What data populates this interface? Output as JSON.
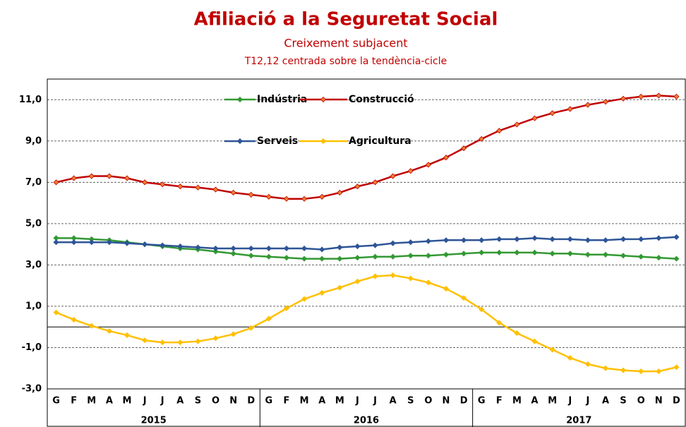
{
  "chart_data": {
    "type": "line",
    "title": "Afiliació a la Seguretat Social",
    "subtitle": "Creixement subjacent",
    "note": "T12,12 centrada sobre la tendència-cicle",
    "categories": [
      "G",
      "F",
      "M",
      "A",
      "M",
      "J",
      "J",
      "A",
      "S",
      "O",
      "N",
      "D",
      "G",
      "F",
      "M",
      "A",
      "M",
      "J",
      "J",
      "A",
      "S",
      "O",
      "N",
      "D",
      "G",
      "F",
      "M",
      "A",
      "M",
      "J",
      "J",
      "A",
      "S",
      "O",
      "N",
      "D"
    ],
    "x_groups": [
      "2015",
      "2016",
      "2017"
    ],
    "ylim": [
      -3,
      12
    ],
    "yticks": [
      {
        "value": -3,
        "label": "-3,0"
      },
      {
        "value": -1,
        "label": "-1,0"
      },
      {
        "value": 1,
        "label": "1,0"
      },
      {
        "value": 3,
        "label": "3,0"
      },
      {
        "value": 5,
        "label": "5,0"
      },
      {
        "value": 7,
        "label": "7,0"
      },
      {
        "value": 9,
        "label": "9,0"
      },
      {
        "value": 11,
        "label": "11,0"
      }
    ],
    "grid": true,
    "series": [
      {
        "name": "Indústria",
        "color": "#339933",
        "marker_color": "#339933",
        "values": [
          4.3,
          4.3,
          4.25,
          4.2,
          4.1,
          4.0,
          3.9,
          3.8,
          3.75,
          3.65,
          3.55,
          3.45,
          3.4,
          3.35,
          3.3,
          3.3,
          3.3,
          3.35,
          3.4,
          3.4,
          3.45,
          3.45,
          3.5,
          3.55,
          3.6,
          3.6,
          3.6,
          3.6,
          3.55,
          3.55,
          3.5,
          3.5,
          3.45,
          3.4,
          3.35,
          3.3
        ]
      },
      {
        "name": "Construcció",
        "color": "#c00000",
        "marker_color": "#f08030",
        "values": [
          7.0,
          7.2,
          7.3,
          7.3,
          7.2,
          7.0,
          6.9,
          6.8,
          6.75,
          6.65,
          6.5,
          6.4,
          6.3,
          6.2,
          6.2,
          6.3,
          6.5,
          6.8,
          7.0,
          7.3,
          7.55,
          7.85,
          8.2,
          8.65,
          9.1,
          9.5,
          9.8,
          10.1,
          10.35,
          10.55,
          10.75,
          10.9,
          11.05,
          11.15,
          11.2,
          11.15
        ]
      },
      {
        "name": "Serveis",
        "color": "#2e5597",
        "marker_color": "#2e5597",
        "values": [
          4.1,
          4.1,
          4.1,
          4.1,
          4.05,
          4.0,
          3.95,
          3.9,
          3.85,
          3.8,
          3.8,
          3.8,
          3.8,
          3.8,
          3.8,
          3.75,
          3.85,
          3.9,
          3.95,
          4.05,
          4.1,
          4.15,
          4.2,
          4.2,
          4.2,
          4.25,
          4.25,
          4.3,
          4.25,
          4.25,
          4.2,
          4.2,
          4.25,
          4.25,
          4.3,
          4.35
        ]
      },
      {
        "name": "Agricultura",
        "color": "#ffc000",
        "marker_color": "#ffc000",
        "values": [
          0.7,
          0.35,
          0.05,
          -0.2,
          -0.4,
          -0.65,
          -0.75,
          -0.75,
          -0.7,
          -0.55,
          -0.35,
          -0.05,
          0.4,
          0.9,
          1.35,
          1.65,
          1.9,
          2.2,
          2.45,
          2.5,
          2.35,
          2.15,
          1.85,
          1.4,
          0.85,
          0.2,
          -0.3,
          -0.7,
          -1.1,
          -1.5,
          -1.8,
          -2.0,
          -2.1,
          -2.15,
          -2.15,
          -1.95
        ]
      }
    ]
  }
}
